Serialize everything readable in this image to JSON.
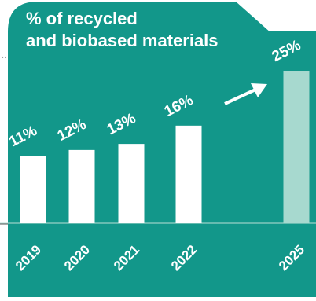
{
  "colors": {
    "background": "#12978a",
    "bar": "#ffffff",
    "bar_target": "#a7d9cf",
    "text": "#ffffff",
    "baseline": "#b9dfd7",
    "dots": "#3d3d3d"
  },
  "chart_data": {
    "type": "bar",
    "title": "% of recycled and biobased materials",
    "title_lines": [
      "% of recycled",
      "and biobased materials"
    ],
    "categories": [
      "2019",
      "2020",
      "2021",
      "2022",
      "2025"
    ],
    "values": [
      11,
      12,
      13,
      16,
      25
    ],
    "value_labels": [
      "11%",
      "12%",
      "13%",
      "16%",
      "25%"
    ],
    "target_category": "2025",
    "trend_arrow": {
      "from": "2022",
      "to": "2025",
      "direction": "up-right"
    },
    "xlabel": "",
    "ylabel": "",
    "ylim": [
      0,
      30
    ],
    "grid": false,
    "legend": "none"
  }
}
